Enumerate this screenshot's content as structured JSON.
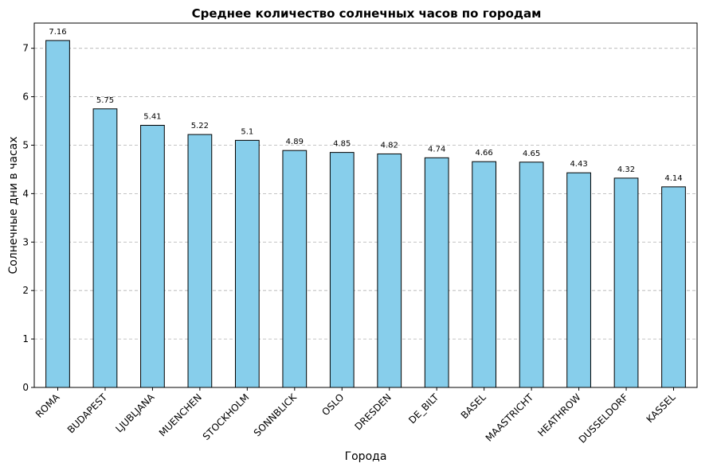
{
  "chart_data": {
    "type": "bar",
    "title": "Среднее количество солнечных часов по городам",
    "xlabel": "Города",
    "ylabel": "Солнечные дни в часах",
    "categories": [
      "ROMA",
      "BUDAPEST",
      "LJUBLJANA",
      "MUENCHEN",
      "STOCKHOLM",
      "SONNBLICK",
      "OSLO",
      "DRESDEN",
      "DE_BILT",
      "BASEL",
      "MAASTRICHT",
      "HEATHROW",
      "DUSSELDORF",
      "KASSEL"
    ],
    "values": [
      7.16,
      5.75,
      5.41,
      5.22,
      5.1,
      4.89,
      4.85,
      4.82,
      4.74,
      4.66,
      4.65,
      4.43,
      4.32,
      4.14
    ],
    "data_labels": [
      "7.16",
      "5.75",
      "5.41",
      "5.22",
      "5.1",
      "4.89",
      "4.85",
      "4.82",
      "4.74",
      "4.66",
      "4.65",
      "4.43",
      "4.32",
      "4.14"
    ],
    "yticks": [
      "0",
      "1",
      "2",
      "3",
      "4",
      "5",
      "6",
      "7"
    ],
    "ylim": [
      0,
      7.52
    ],
    "grid": true,
    "bar_color": "#87CEEB",
    "bar_edge_color": "#000000"
  }
}
